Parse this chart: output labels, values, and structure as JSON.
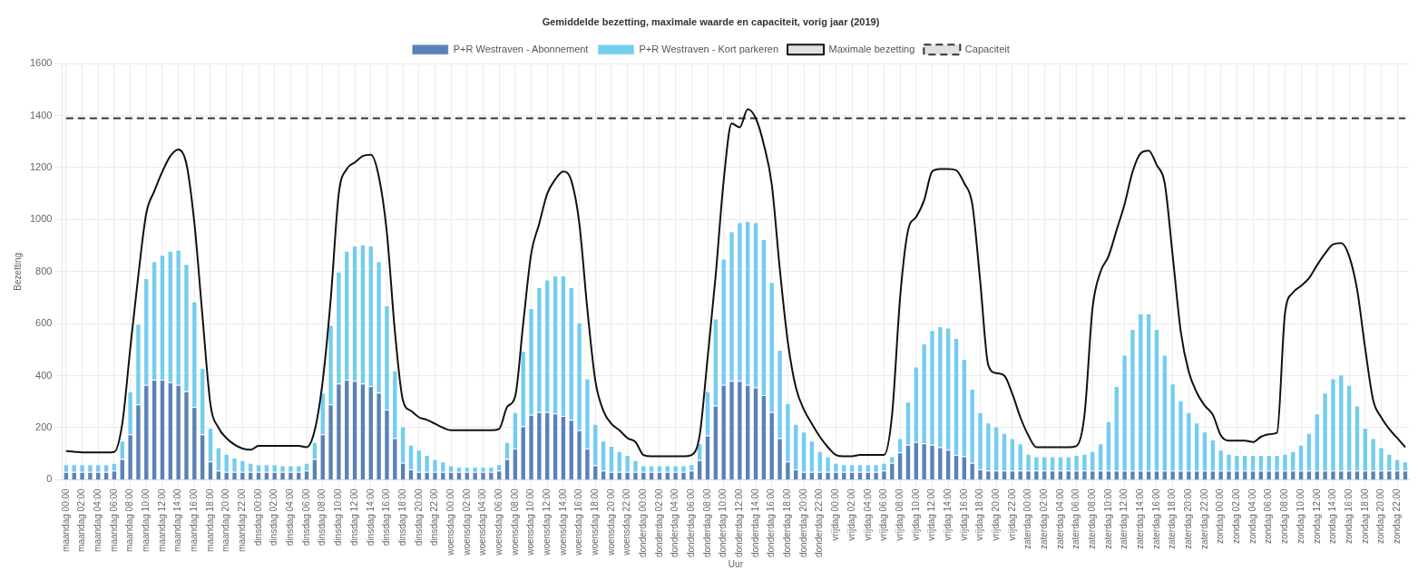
{
  "chart_data": {
    "type": "bar",
    "title": "Gemiddelde bezetting, maximale waarde en capaciteit, vorig jaar (2019)",
    "xlabel": "Uur",
    "ylabel": "Bezetting",
    "categories": [
      "maandag 00:00",
      null,
      "maandag 02:00",
      null,
      "maandag 04:00",
      null,
      "maandag 06:00",
      null,
      "maandag 08:00",
      null,
      "maandag 10:00",
      null,
      "maandag 12:00",
      null,
      "maandag 14:00",
      null,
      "maandag 16:00",
      null,
      "maandag 18:00",
      null,
      "maandag 20:00",
      null,
      "maandag 22:00",
      null,
      "dinsdag 00:00",
      null,
      "dinsdag 02:00",
      null,
      "dinsdag 04:00",
      null,
      "dinsdag 06:00",
      null,
      "dinsdag 08:00",
      null,
      "dinsdag 10:00",
      null,
      "dinsdag 12:00",
      null,
      "dinsdag 14:00",
      null,
      "dinsdag 16:00",
      null,
      "dinsdag 18:00",
      null,
      "dinsdag 20:00",
      null,
      "dinsdag 22:00",
      null,
      "woensdag 00:00",
      null,
      "woensdag 02:00",
      null,
      "woensdag 04:00",
      null,
      "woensdag 06:00",
      null,
      "woensdag 08:00",
      null,
      "woensdag 10:00",
      null,
      "woensdag 12:00",
      null,
      "woensdag 14:00",
      null,
      "woensdag 16:00",
      null,
      "woensdag 18:00",
      null,
      "woensdag 20:00",
      null,
      "woensdag 22:00",
      null,
      "donderdag 00:00",
      null,
      "donderdag 02:00",
      null,
      "donderdag 04:00",
      null,
      "donderdag 06:00",
      null,
      "donderdag 08:00",
      null,
      "donderdag 10:00",
      null,
      "donderdag 12:00",
      null,
      "donderdag 14:00",
      null,
      "donderdag 16:00",
      null,
      "donderdag 18:00",
      null,
      "donderdag 20:00",
      null,
      "donderdag 22:00",
      null,
      "vrijdag 00:00",
      null,
      "vrijdag 02:00",
      null,
      "vrijdag 04:00",
      null,
      "vrijdag 06:00",
      null,
      "vrijdag 08:00",
      null,
      "vrijdag 10:00",
      null,
      "vrijdag 12:00",
      null,
      "vrijdag 14:00",
      null,
      "vrijdag 16:00",
      null,
      "vrijdag 18:00",
      null,
      "vrijdag 20:00",
      null,
      "vrijdag 22:00",
      null,
      "zaterdag 00:00",
      null,
      "zaterdag 02:00",
      null,
      "zaterdag 04:00",
      null,
      "zaterdag 06:00",
      null,
      "zaterdag 08:00",
      null,
      "zaterdag 10:00",
      null,
      "zaterdag 12:00",
      null,
      "zaterdag 14:00",
      null,
      "zaterdag 16:00",
      null,
      "zaterdag 18:00",
      null,
      "zaterdag 20:00",
      null,
      "zaterdag 22:00",
      null,
      "zondag 00:00",
      null,
      "zondag 02:00",
      null,
      "zondag 04:00",
      null,
      "zondag 06:00",
      null,
      "zondag 08:00",
      null,
      "zondag 10:00",
      null,
      "zondag 12:00",
      null,
      "zondag 14:00",
      null,
      "zondag 16:00",
      null,
      "zondag 18:00",
      null,
      "zondag 20:00",
      null,
      "zondag 22:00",
      null
    ],
    "stacked": true,
    "marker": "none",
    "legend": "top",
    "grid": true,
    "ylim": [
      0,
      1600
    ],
    "yticks": [
      0,
      200,
      400,
      600,
      800,
      1000,
      1200,
      1400,
      1600
    ],
    "series": [
      {
        "name": "P+R Westraven - Abonnement",
        "color": "#5a82b6",
        "values": [
          30,
          30,
          30,
          30,
          30,
          30,
          35,
          80,
          175,
          290,
          365,
          385,
          385,
          375,
          365,
          340,
          280,
          175,
          70,
          35,
          30,
          30,
          30,
          30,
          30,
          30,
          30,
          30,
          30,
          30,
          35,
          80,
          175,
          290,
          370,
          385,
          380,
          370,
          360,
          335,
          270,
          160,
          65,
          40,
          30,
          30,
          30,
          30,
          30,
          30,
          30,
          30,
          30,
          30,
          35,
          80,
          120,
          205,
          250,
          260,
          260,
          255,
          245,
          230,
          190,
          120,
          55,
          35,
          30,
          30,
          30,
          30,
          30,
          30,
          30,
          30,
          30,
          30,
          35,
          75,
          170,
          285,
          365,
          380,
          380,
          365,
          355,
          325,
          260,
          160,
          70,
          40,
          30,
          30,
          30,
          30,
          30,
          30,
          30,
          30,
          30,
          30,
          35,
          65,
          105,
          135,
          145,
          140,
          135,
          125,
          115,
          95,
          90,
          65,
          40,
          35,
          35,
          35,
          35,
          35,
          35,
          35,
          35,
          35,
          35,
          35,
          35,
          35,
          35,
          35,
          35,
          35,
          35,
          35,
          35,
          35,
          35,
          35,
          35,
          35,
          35,
          35,
          35,
          35,
          35,
          35,
          35,
          35,
          35,
          35,
          35,
          35,
          35,
          35,
          35,
          35,
          35,
          35,
          35,
          35,
          35,
          35,
          35,
          35,
          35,
          35,
          35,
          35
        ]
      },
      {
        "name": "P+R Westraven - Kort parkeren",
        "color": "#74cdef",
        "values": [
          30,
          30,
          30,
          30,
          30,
          30,
          30,
          70,
          165,
          310,
          410,
          455,
          480,
          505,
          520,
          490,
          405,
          255,
          130,
          90,
          70,
          55,
          45,
          35,
          30,
          30,
          30,
          25,
          25,
          25,
          30,
          65,
          160,
          305,
          430,
          495,
          520,
          535,
          540,
          505,
          400,
          260,
          140,
          95,
          85,
          65,
          50,
          40,
          25,
          20,
          20,
          20,
          20,
          20,
          25,
          65,
          140,
          290,
          410,
          480,
          510,
          530,
          540,
          510,
          415,
          270,
          160,
          115,
          100,
          80,
          65,
          45,
          25,
          25,
          25,
          25,
          25,
          25,
          25,
          65,
          170,
          335,
          485,
          575,
          610,
          630,
          635,
          600,
          500,
          340,
          225,
          175,
          155,
          120,
          80,
          60,
          35,
          30,
          30,
          30,
          30,
          30,
          30,
          25,
          55,
          165,
          290,
          385,
          440,
          465,
          470,
          450,
          375,
          285,
          220,
          185,
          170,
          145,
          125,
          105,
          65,
          55,
          55,
          55,
          55,
          55,
          60,
          65,
          75,
          105,
          190,
          325,
          445,
          545,
          605,
          605,
          545,
          445,
          335,
          270,
          225,
          185,
          150,
          120,
          80,
          65,
          60,
          60,
          60,
          60,
          60,
          60,
          65,
          75,
          100,
          145,
          220,
          300,
          355,
          370,
          330,
          250,
          165,
          125,
          90,
          65,
          45,
          35
        ]
      },
      {
        "name": "Maximale bezetting",
        "type": "line",
        "color": "#111111",
        "values": [
          110,
          108,
          105,
          105,
          105,
          105,
          107,
          215,
          505,
          785,
          1025,
          1110,
          1185,
          1245,
          1270,
          1215,
          985,
          630,
          290,
          200,
          160,
          135,
          120,
          115,
          130,
          130,
          130,
          130,
          130,
          130,
          125,
          190,
          380,
          695,
          1100,
          1195,
          1220,
          1245,
          1250,
          1165,
          950,
          570,
          305,
          265,
          240,
          230,
          215,
          200,
          190,
          190,
          190,
          190,
          190,
          190,
          195,
          280,
          320,
          600,
          870,
          985,
          1100,
          1155,
          1185,
          1150,
          985,
          655,
          380,
          265,
          215,
          190,
          160,
          145,
          95,
          90,
          90,
          90,
          90,
          90,
          95,
          170,
          470,
          785,
          1150,
          1370,
          1355,
          1425,
          1390,
          1290,
          1135,
          810,
          530,
          355,
          270,
          215,
          165,
          125,
          95,
          90,
          90,
          95,
          95,
          95,
          95,
          250,
          700,
          960,
          1010,
          1075,
          1185,
          1195,
          1195,
          1190,
          1140,
          1060,
          760,
          440,
          410,
          400,
          330,
          240,
          170,
          125,
          125,
          125,
          125,
          125,
          130,
          250,
          660,
          800,
          860,
          960,
          1060,
          1185,
          1255,
          1265,
          1210,
          1140,
          860,
          570,
          415,
          335,
          285,
          250,
          170,
          150,
          150,
          150,
          145,
          165,
          175,
          180,
          640,
          720,
          745,
          775,
          825,
          870,
          905,
          910,
          860,
          730,
          505,
          305,
          240,
          195,
          160,
          125
        ]
      },
      {
        "name": "Capaciteit",
        "type": "line",
        "color": "#333333",
        "line_style": "dashed",
        "values": [
          1390,
          1390,
          1390,
          1390,
          1390,
          1390,
          1390,
          1390,
          1390,
          1390,
          1390,
          1390,
          1390,
          1390,
          1390,
          1390,
          1390,
          1390,
          1390,
          1390,
          1390,
          1390,
          1390,
          1390,
          1390,
          1390,
          1390,
          1390,
          1390,
          1390,
          1390,
          1390,
          1390,
          1390,
          1390,
          1390,
          1390,
          1390,
          1390,
          1390,
          1390,
          1390,
          1390,
          1390,
          1390,
          1390,
          1390,
          1390,
          1390,
          1390,
          1390,
          1390,
          1390,
          1390,
          1390,
          1390,
          1390,
          1390,
          1390,
          1390,
          1390,
          1390,
          1390,
          1390,
          1390,
          1390,
          1390,
          1390,
          1390,
          1390,
          1390,
          1390,
          1390,
          1390,
          1390,
          1390,
          1390,
          1390,
          1390,
          1390,
          1390,
          1390,
          1390,
          1390,
          1390,
          1390,
          1390,
          1390,
          1390,
          1390,
          1390,
          1390,
          1390,
          1390,
          1390,
          1390,
          1390,
          1390,
          1390,
          1390,
          1390,
          1390,
          1390,
          1390,
          1390,
          1390,
          1390,
          1390,
          1390,
          1390,
          1390,
          1390,
          1390,
          1390,
          1390,
          1390,
          1390,
          1390,
          1390,
          1390,
          1390,
          1390,
          1390,
          1390,
          1390,
          1390,
          1390,
          1390,
          1390,
          1390,
          1390,
          1390,
          1390,
          1390,
          1390,
          1390,
          1390,
          1390,
          1390,
          1390,
          1390,
          1390,
          1390,
          1390,
          1390,
          1390,
          1390,
          1390,
          1390,
          1390,
          1390,
          1390,
          1390,
          1390,
          1390,
          1390,
          1390,
          1390,
          1390,
          1390,
          1390,
          1390,
          1390,
          1390,
          1390,
          1390,
          1390,
          1390
        ]
      }
    ]
  }
}
